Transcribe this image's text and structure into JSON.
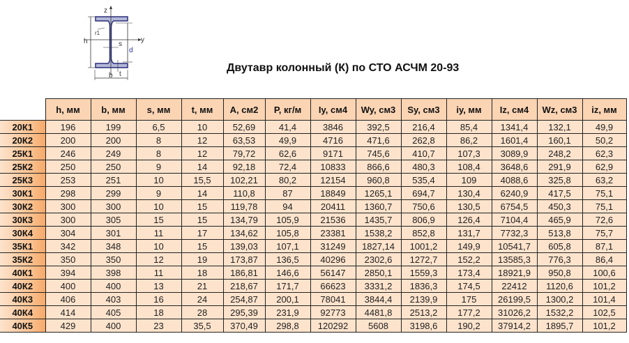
{
  "title": "Двутавр колонный (К) по СТО АСЧМ 20-93",
  "diagram": {
    "labels": {
      "z": "z",
      "y": "y",
      "h": "h",
      "r1": "r1",
      "s": "s",
      "d": "d",
      "b": "b",
      "t": "t"
    }
  },
  "colors": {
    "header_bg": "#fbd4b4",
    "cell_bg": "#fde3cc",
    "name_col": "#f6a969"
  },
  "table": {
    "headers": [
      "h, мм",
      "b, мм",
      "s, мм",
      "t, мм",
      "A, см2",
      "P, кг/м",
      "Iy, см4",
      "Wy, см3",
      "Sy, см3",
      "iy, мм",
      "Iz, см4",
      "Wz, см3",
      "iz, мм"
    ],
    "rows": [
      {
        "name": "20К1",
        "values": [
          "196",
          "199",
          "6,5",
          "10",
          "52,69",
          "41,4",
          "3846",
          "392,5",
          "216,4",
          "85,4",
          "1341,4",
          "132,1",
          "49,9"
        ]
      },
      {
        "name": "20К2",
        "values": [
          "200",
          "200",
          "8",
          "12",
          "63,53",
          "49,9",
          "4716",
          "471,6",
          "262,8",
          "86,2",
          "1601,4",
          "160,1",
          "50,2"
        ]
      },
      {
        "name": "25К1",
        "values": [
          "246",
          "249",
          "8",
          "12",
          "79,72",
          "62,6",
          "9171",
          "745,6",
          "410,7",
          "107,3",
          "3089,9",
          "248,2",
          "62,3"
        ]
      },
      {
        "name": "25К2",
        "values": [
          "250",
          "250",
          "9",
          "14",
          "92,18",
          "72,4",
          "10833",
          "866,6",
          "480,3",
          "108,4",
          "3648,6",
          "291,9",
          "62,9"
        ]
      },
      {
        "name": "25К3",
        "values": [
          "253",
          "251",
          "10",
          "15,5",
          "102,21",
          "80,2",
          "12154",
          "960,8",
          "535,4",
          "109",
          "4088,6",
          "325,8",
          "63,2"
        ]
      },
      {
        "name": "30К1",
        "values": [
          "298",
          "299",
          "9",
          "14",
          "110,8",
          "87",
          "18849",
          "1265,1",
          "694,7",
          "130,4",
          "6240,9",
          "417,5",
          "75,1"
        ]
      },
      {
        "name": "30К2",
        "values": [
          "300",
          "300",
          "10",
          "15",
          "119,78",
          "94",
          "20411",
          "1360,7",
          "750,6",
          "130,5",
          "6754,5",
          "450,3",
          "75,1"
        ]
      },
      {
        "name": "30К3",
        "values": [
          "300",
          "305",
          "15",
          "15",
          "134,79",
          "105,9",
          "21536",
          "1435,7",
          "806,9",
          "126,4",
          "7104,4",
          "465,9",
          "72,6"
        ]
      },
      {
        "name": "30К4",
        "values": [
          "304",
          "301",
          "11",
          "17",
          "134,62",
          "105,8",
          "23381",
          "1538,2",
          "852,8",
          "131,7",
          "7732,3",
          "513,8",
          "75,7"
        ]
      },
      {
        "name": "35К1",
        "values": [
          "342",
          "348",
          "10",
          "15",
          "139,03",
          "107,1",
          "31249",
          "1827,14",
          "1001,2",
          "149,9",
          "10541,7",
          "605,8",
          "87,1"
        ]
      },
      {
        "name": "35К2",
        "values": [
          "350",
          "350",
          "12",
          "19",
          "173,87",
          "136,5",
          "40296",
          "2302,6",
          "1272,7",
          "152,2",
          "13585,3",
          "776,3",
          "86,4"
        ]
      },
      {
        "name": "40К1",
        "values": [
          "394",
          "398",
          "11",
          "18",
          "186,81",
          "146,6",
          "56147",
          "2850,1",
          "1559,3",
          "173,4",
          "18921,9",
          "950,8",
          "100,6"
        ]
      },
      {
        "name": "40К2",
        "values": [
          "400",
          "400",
          "13",
          "21",
          "218,67",
          "171,7",
          "66623",
          "3331,2",
          "1836,3",
          "174,5",
          "22412",
          "1120,6",
          "101,2"
        ]
      },
      {
        "name": "40К3",
        "values": [
          "406",
          "403",
          "16",
          "24",
          "254,87",
          "200,1",
          "78041",
          "3844,4",
          "2139,9",
          "175",
          "26199,5",
          "1300,2",
          "101,4"
        ]
      },
      {
        "name": "40К4",
        "values": [
          "414",
          "405",
          "18",
          "28",
          "295,39",
          "231,9",
          "92773",
          "4481,8",
          "2513,2",
          "177,2",
          "31026,2",
          "1532,2",
          "102,5"
        ]
      },
      {
        "name": "40К5",
        "values": [
          "429",
          "400",
          "23",
          "35,5",
          "370,49",
          "298,8",
          "120292",
          "5608",
          "3198,6",
          "190,2",
          "37914,2",
          "1895,7",
          "101,2"
        ]
      }
    ]
  }
}
